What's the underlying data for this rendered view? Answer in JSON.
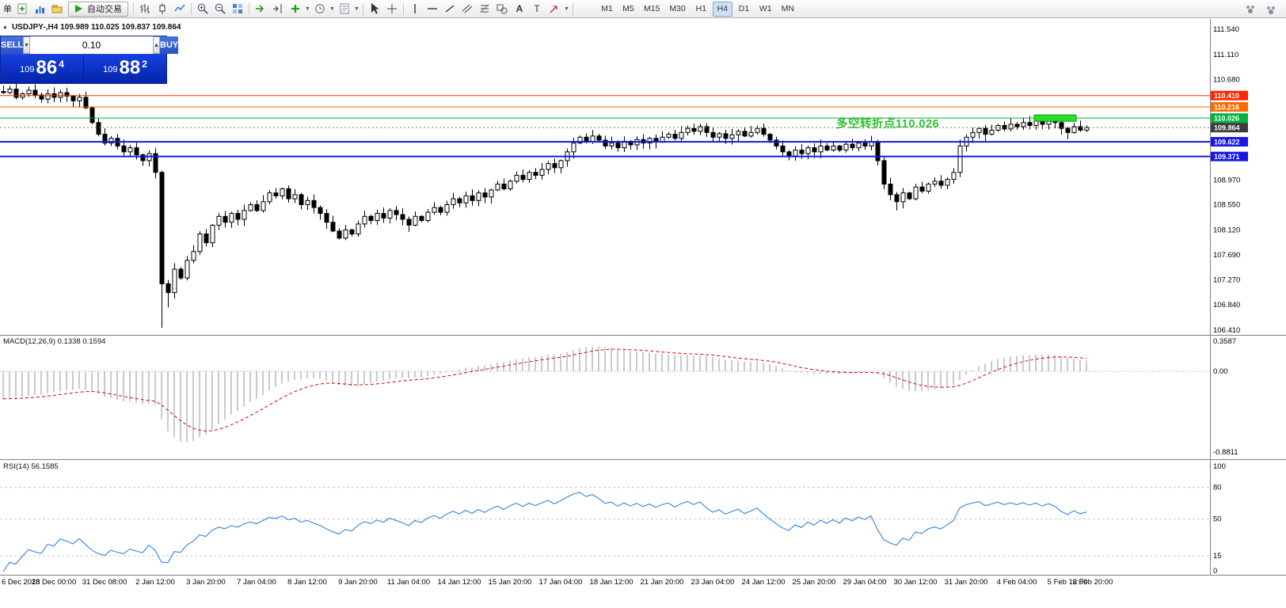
{
  "toolbar": {
    "clipped_label": "单",
    "autotrade_label": "自动交易",
    "timeframes": [
      "M1",
      "M5",
      "M15",
      "M30",
      "H1",
      "H4",
      "D1",
      "W1",
      "MN"
    ],
    "active_timeframe": "H4",
    "icons": [
      "new-order",
      "charts",
      "profiles",
      "autotrading-play",
      "bar-chart-type",
      "candlestick-type",
      "line-chart-type",
      "zoom-in",
      "zoom-out",
      "tile-windows",
      "auto-scroll",
      "chart-shift",
      "add-indicator",
      "period-selector",
      "template-selector",
      "cursor",
      "crosshair",
      "vertical-line",
      "horizontal-line",
      "trendline",
      "equidistant-channel",
      "fibonacci",
      "shapes",
      "text",
      "text-label",
      "arrow-tools",
      "community",
      "search"
    ]
  },
  "window": {
    "symbol_header": "USDJPY-,H4 109.989 110.025 109.837 109.864"
  },
  "one_click": {
    "sell_label": "SELL",
    "buy_label": "BUY",
    "volume": "0.10",
    "bid": {
      "prefix": "109",
      "big": "86",
      "sup": "4"
    },
    "ask": {
      "prefix": "109",
      "big": "88",
      "sup": "2"
    }
  },
  "annotation": {
    "text": "多空转折点110.026",
    "color": "#2fbf2f"
  },
  "indicators": {
    "macd_label": "MACD(12,26,9) 0.1338 0.1594",
    "rsi_label": "RSI(14) 56.1585"
  },
  "chart_data": {
    "type": "candlestick",
    "symbol": "USDJPY-",
    "timeframe": "H4",
    "ohlc_display": {
      "open": 109.989,
      "high": 110.025,
      "low": 109.837,
      "close": 109.864
    },
    "price_axis": {
      "min": 106.41,
      "max": 111.54,
      "labels": [
        "111.540",
        "111.110",
        "110.680",
        "108.970",
        "108.550",
        "108.120",
        "107.690",
        "107.270",
        "106.840",
        "106.410"
      ]
    },
    "levels": [
      {
        "price": 110.41,
        "label": "110.410",
        "color": "#ff2600",
        "line_width": 1
      },
      {
        "price": 110.216,
        "label": "110.216",
        "color": "#ff6a00",
        "line_width": 1
      },
      {
        "price": 110.026,
        "label": "110.026",
        "color": "#00b33c",
        "line_width": 1
      },
      {
        "price": 109.864,
        "label": "109.864",
        "color": "#3c3c3c",
        "line_width": 1,
        "style": "dotted",
        "role": "current-price"
      },
      {
        "price": 109.622,
        "label": "109.622",
        "color": "#1717e6",
        "line_width": 2
      },
      {
        "price": 109.371,
        "label": "109.371",
        "color": "#1717e6",
        "line_width": 2
      }
    ],
    "highlight_box": {
      "start_index": 163,
      "end_index": 169,
      "price": 110.026,
      "color": "#28e028"
    },
    "candles": {
      "pre_history": [
        112.1,
        112.04,
        111.98,
        111.92,
        111.86,
        111.8,
        111.73,
        111.66,
        111.6,
        111.53,
        111.46,
        111.4,
        111.33,
        111.26,
        111.2,
        111.13,
        111.06,
        111.0,
        110.95,
        110.89,
        110.83,
        110.78,
        110.73,
        110.68,
        110.63,
        110.59,
        110.55,
        110.52,
        110.5,
        110.48
      ],
      "closes": [
        110.46,
        110.52,
        110.38,
        110.44,
        110.5,
        110.42,
        110.35,
        110.44,
        110.38,
        110.46,
        110.4,
        110.32,
        110.38,
        110.2,
        109.95,
        109.75,
        109.6,
        109.68,
        109.55,
        109.45,
        109.52,
        109.4,
        109.3,
        109.42,
        109.1,
        107.2,
        107.05,
        107.45,
        107.3,
        107.6,
        107.75,
        108.05,
        107.9,
        108.2,
        108.35,
        108.25,
        108.4,
        108.3,
        108.45,
        108.55,
        108.45,
        108.6,
        108.75,
        108.7,
        108.82,
        108.65,
        108.72,
        108.55,
        108.62,
        108.5,
        108.4,
        108.25,
        108.1,
        107.98,
        108.12,
        108.05,
        108.22,
        108.35,
        108.28,
        108.4,
        108.32,
        108.45,
        108.38,
        108.3,
        108.2,
        108.35,
        108.28,
        108.42,
        108.5,
        108.42,
        108.55,
        108.65,
        108.58,
        108.7,
        108.62,
        108.75,
        108.68,
        108.8,
        108.9,
        108.82,
        108.95,
        109.05,
        108.98,
        109.1,
        109.05,
        109.15,
        109.25,
        109.18,
        109.3,
        109.45,
        109.6,
        109.7,
        109.62,
        109.72,
        109.65,
        109.55,
        109.6,
        109.52,
        109.63,
        109.57,
        109.66,
        109.6,
        109.68,
        109.62,
        109.7,
        109.75,
        109.68,
        109.78,
        109.85,
        109.8,
        109.88,
        109.78,
        109.7,
        109.76,
        109.68,
        109.74,
        109.8,
        109.72,
        109.78,
        109.85,
        109.75,
        109.65,
        109.55,
        109.45,
        109.38,
        109.48,
        109.42,
        109.52,
        109.45,
        109.55,
        109.48,
        109.55,
        109.48,
        109.58,
        109.52,
        109.6,
        109.55,
        109.62,
        109.3,
        108.9,
        108.72,
        108.6,
        108.75,
        108.65,
        108.85,
        108.78,
        108.9,
        108.95,
        108.88,
        108.98,
        109.1,
        109.55,
        109.7,
        109.78,
        109.85,
        109.75,
        109.82,
        109.9,
        109.84,
        109.92,
        109.88,
        109.95,
        109.9,
        109.98,
        109.92,
        110.0,
        109.95,
        109.85,
        109.78,
        109.88,
        109.82,
        109.864
      ],
      "low_overrides": {
        "25": 106.45,
        "26": 106.8,
        "27": 106.95,
        "141": 108.45
      },
      "high_overrides": {
        "0": 110.58,
        "110": 109.93
      }
    },
    "macd": {
      "fast": 12,
      "slow": 26,
      "signal": 9,
      "current": [
        0.1338,
        0.1594
      ],
      "axis_labels": [
        "0.3587",
        "0.00",
        "-0.8811"
      ]
    },
    "rsi": {
      "period": 14,
      "current": 56.1585,
      "axis_labels": [
        100,
        80,
        50,
        15,
        0
      ],
      "levels": [
        80,
        50,
        15
      ]
    },
    "time_axis": [
      {
        "i": 0,
        "t": "6 Dec 2018"
      },
      {
        "i": 8,
        "t": "28 Dec 00:00"
      },
      {
        "i": 16,
        "t": "31 Dec 08:00"
      },
      {
        "i": 24,
        "t": "2 Jan 12:00"
      },
      {
        "i": 32,
        "t": "3 Jan 20:00"
      },
      {
        "i": 40,
        "t": "7 Jan 04:00"
      },
      {
        "i": 48,
        "t": "8 Jan 12:00"
      },
      {
        "i": 56,
        "t": "9 Jan 20:00"
      },
      {
        "i": 64,
        "t": "11 Jan 04:00"
      },
      {
        "i": 72,
        "t": "14 Jan 12:00"
      },
      {
        "i": 80,
        "t": "15 Jan 20:00"
      },
      {
        "i": 88,
        "t": "17 Jan 04:00"
      },
      {
        "i": 96,
        "t": "18 Jan 12:00"
      },
      {
        "i": 104,
        "t": "21 Jan 20:00"
      },
      {
        "i": 112,
        "t": "23 Jan 04:00"
      },
      {
        "i": 120,
        "t": "24 Jan 12:00"
      },
      {
        "i": 128,
        "t": "25 Jan 20:00"
      },
      {
        "i": 136,
        "t": "29 Jan 04:00"
      },
      {
        "i": 144,
        "t": "30 Jan 12:00"
      },
      {
        "i": 152,
        "t": "31 Jan 20:00"
      },
      {
        "i": 160,
        "t": "4 Feb 04:00"
      },
      {
        "i": 168,
        "t": "5 Feb 12:00"
      },
      {
        "i": 172,
        "t": "6 Feb 20:00"
      }
    ]
  }
}
